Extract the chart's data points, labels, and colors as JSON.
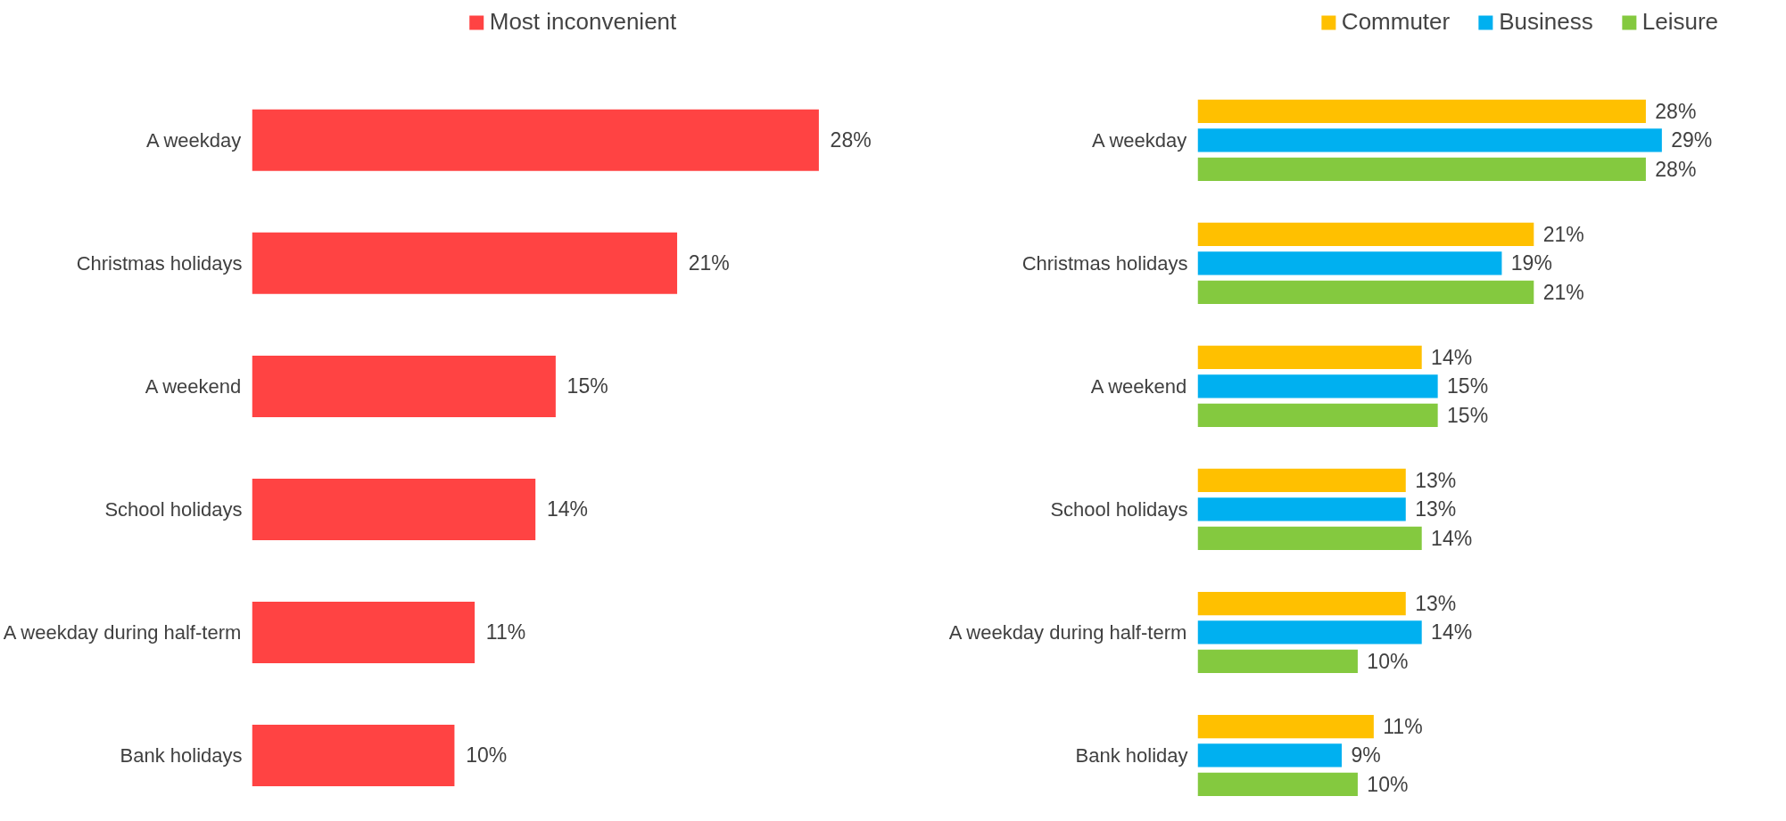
{
  "chart_data": [
    {
      "type": "bar",
      "orientation": "horizontal",
      "legend": "top",
      "tick_labels": "y",
      "categories": [
        "A weekday",
        "Christmas holidays",
        "A weekend",
        "School holidays",
        "A weekday during half-term",
        "Bank holidays"
      ],
      "series": [
        {
          "name": "Most inconvenient",
          "color": "#ff4343",
          "values": [
            28,
            21,
            15,
            14,
            11,
            10
          ],
          "value_labels": [
            "28%",
            "21%",
            "15%",
            "14%",
            "11%",
            "10%"
          ]
        }
      ]
    },
    {
      "type": "bar",
      "orientation": "horizontal",
      "legend": "top right",
      "tick_labels": "y",
      "categories": [
        "A weekday",
        "Christmas holidays",
        "A weekend",
        "School holidays",
        "A weekday during half-term",
        "Bank holiday"
      ],
      "series": [
        {
          "name": "Commuter",
          "color": "#ffc000",
          "values": [
            28,
            21,
            14,
            13,
            13,
            11
          ],
          "value_labels": [
            "28%",
            "21%",
            "14%",
            "13%",
            "13%",
            "11%"
          ]
        },
        {
          "name": "Business",
          "color": "#00b0f0",
          "values": [
            29,
            19,
            15,
            13,
            14,
            9
          ],
          "value_labels": [
            "29%",
            "19%",
            "15%",
            "13%",
            "14%",
            "9%"
          ]
        },
        {
          "name": "Leisure",
          "color": "#84c93f",
          "values": [
            28,
            21,
            15,
            14,
            10,
            10
          ],
          "value_labels": [
            "28%",
            "21%",
            "15%",
            "14%",
            "10%",
            "10%"
          ]
        }
      ]
    }
  ]
}
